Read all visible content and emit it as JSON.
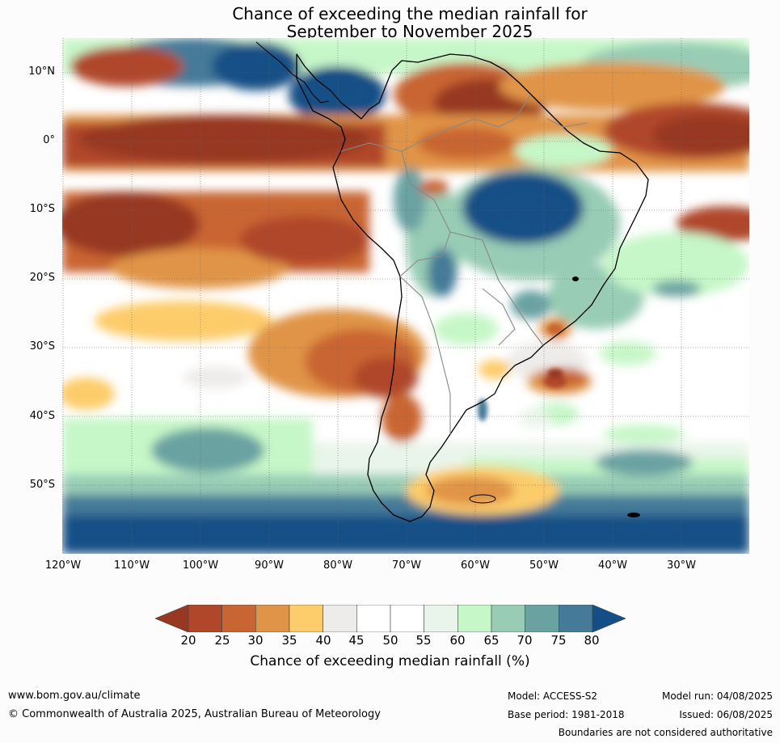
{
  "title": {
    "line1": "Chance of exceeding the median rainfall for",
    "line2": "September to November 2025"
  },
  "map": {
    "lat_labels": [
      "10°N",
      "0°",
      "10°S",
      "20°S",
      "30°S",
      "40°S",
      "50°S"
    ],
    "lon_labels": [
      "120°W",
      "110°W",
      "100°W",
      "90°W",
      "80°W",
      "70°W",
      "60°W",
      "50°W",
      "40°W",
      "30°W"
    ],
    "region": "South America",
    "colors": {
      "ocean_background": "#ffffff",
      "coastline": "#000000",
      "country_borders": "#888888"
    }
  },
  "colorbar": {
    "ticks": [
      "20",
      "25",
      "30",
      "35",
      "40",
      "45",
      "50",
      "55",
      "60",
      "65",
      "70",
      "75",
      "80"
    ],
    "colors": [
      "#973823",
      "#b0472a",
      "#c96533",
      "#e09447",
      "#fdcc6b",
      "#eeecea",
      "#ffffff",
      "#ffffff",
      "#e9f5ea",
      "#c6f7c8",
      "#98ccb5",
      "#6aa2a2",
      "#457a98",
      "#134f86"
    ],
    "label": "Chance of exceeding median rainfall (%)"
  },
  "footer": {
    "url": "www.bom.gov.au/climate",
    "copyright": "© Commonwealth of Australia 2025, Australian Bureau of Meteorology",
    "model": "Model: ACCESS-S2",
    "base_period": "Base period: 1981-2018",
    "model_run": "Model run: 04/08/2025",
    "issued": "Issued: 06/08/2025",
    "disclaimer": "Boundaries are not considered authoritative"
  }
}
